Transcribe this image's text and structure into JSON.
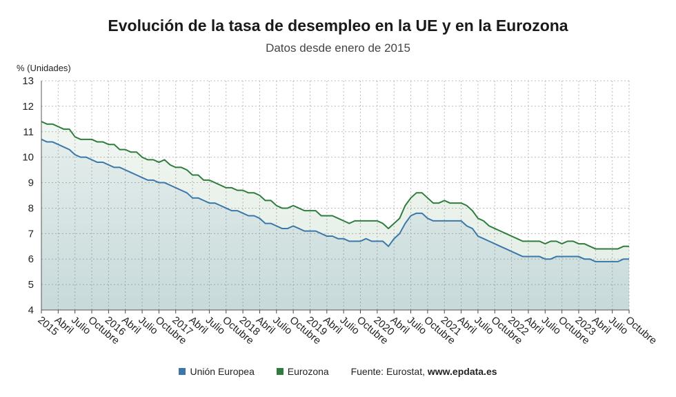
{
  "header": {
    "title": "Evolución de la tasa de desempleo en la UE y en la Eurozona",
    "subtitle": "Datos desde enero de 2015",
    "y_unit": "% (Unidades)"
  },
  "legend": {
    "eu_label": "Unión Europea",
    "ez_label": "Eurozona",
    "source_prefix": "Fuente: Eurostat,",
    "source_site": "www.epdata.es"
  },
  "colors": {
    "eu": "#3b77a8",
    "ez": "#2e7d3c",
    "grid": "#bbbbbb"
  },
  "chart_data": {
    "type": "line",
    "title": "Evolución de la tasa de desempleo en la UE y en la Eurozona",
    "subtitle": "Datos desde enero de 2015",
    "ylabel": "% (Unidades)",
    "ylim": [
      4,
      13
    ],
    "yticks": [
      4,
      5,
      6,
      7,
      8,
      9,
      10,
      11,
      12,
      13
    ],
    "x_start": "2015-01",
    "x_end": "2023-10",
    "frequency": "monthly",
    "x_tick_labels": [
      "2015",
      "Abril",
      "Julio",
      "Octubre",
      "2016",
      "Abril",
      "Julio",
      "Octubre",
      "2017",
      "Abril",
      "Julio",
      "Octubre",
      "2018",
      "Abril",
      "Julio",
      "Octubre",
      "2019",
      "Abril",
      "Julio",
      "Octubre",
      "2020",
      "Abril",
      "Julio",
      "Octubre",
      "2021",
      "Abril",
      "Julio",
      "Octubre",
      "2022",
      "Abril",
      "Julio",
      "Octubre",
      "2023",
      "Abril",
      "Julio",
      "Octubre"
    ],
    "grid": true,
    "legend_position": "bottom",
    "series": [
      {
        "name": "Unión Europea",
        "values": [
          10.7,
          10.6,
          10.6,
          10.5,
          10.4,
          10.3,
          10.1,
          10.0,
          10.0,
          9.9,
          9.8,
          9.8,
          9.7,
          9.6,
          9.6,
          9.5,
          9.4,
          9.3,
          9.2,
          9.1,
          9.1,
          9.0,
          9.0,
          8.9,
          8.8,
          8.7,
          8.6,
          8.4,
          8.4,
          8.3,
          8.2,
          8.2,
          8.1,
          8.0,
          7.9,
          7.9,
          7.8,
          7.7,
          7.7,
          7.6,
          7.4,
          7.4,
          7.3,
          7.2,
          7.2,
          7.3,
          7.2,
          7.1,
          7.1,
          7.1,
          7.0,
          6.9,
          6.9,
          6.8,
          6.8,
          6.7,
          6.7,
          6.7,
          6.8,
          6.7,
          6.7,
          6.7,
          6.5,
          6.8,
          7.0,
          7.4,
          7.7,
          7.8,
          7.8,
          7.6,
          7.5,
          7.5,
          7.5,
          7.5,
          7.5,
          7.5,
          7.3,
          7.2,
          6.9,
          6.8,
          6.7,
          6.6,
          6.5,
          6.4,
          6.3,
          6.2,
          6.1,
          6.1,
          6.1,
          6.1,
          6.0,
          6.0,
          6.1,
          6.1,
          6.1,
          6.1,
          6.1,
          6.0,
          6.0,
          5.9,
          5.9,
          5.9,
          5.9,
          5.9,
          6.0,
          6.0
        ]
      },
      {
        "name": "Eurozona",
        "values": [
          11.4,
          11.3,
          11.3,
          11.2,
          11.1,
          11.1,
          10.8,
          10.7,
          10.7,
          10.7,
          10.6,
          10.6,
          10.5,
          10.5,
          10.3,
          10.3,
          10.2,
          10.2,
          10.0,
          9.9,
          9.9,
          9.8,
          9.9,
          9.7,
          9.6,
          9.6,
          9.5,
          9.3,
          9.3,
          9.1,
          9.1,
          9.0,
          8.9,
          8.8,
          8.8,
          8.7,
          8.7,
          8.6,
          8.6,
          8.5,
          8.3,
          8.3,
          8.1,
          8.0,
          8.0,
          8.1,
          8.0,
          7.9,
          7.9,
          7.9,
          7.7,
          7.7,
          7.7,
          7.6,
          7.5,
          7.4,
          7.5,
          7.5,
          7.5,
          7.5,
          7.5,
          7.4,
          7.2,
          7.4,
          7.6,
          8.1,
          8.4,
          8.6,
          8.6,
          8.4,
          8.2,
          8.2,
          8.3,
          8.2,
          8.2,
          8.2,
          8.1,
          7.9,
          7.6,
          7.5,
          7.3,
          7.2,
          7.1,
          7.0,
          6.9,
          6.8,
          6.7,
          6.7,
          6.7,
          6.7,
          6.6,
          6.7,
          6.7,
          6.6,
          6.7,
          6.7,
          6.6,
          6.6,
          6.5,
          6.4,
          6.4,
          6.4,
          6.4,
          6.4,
          6.5,
          6.5
        ]
      }
    ]
  }
}
